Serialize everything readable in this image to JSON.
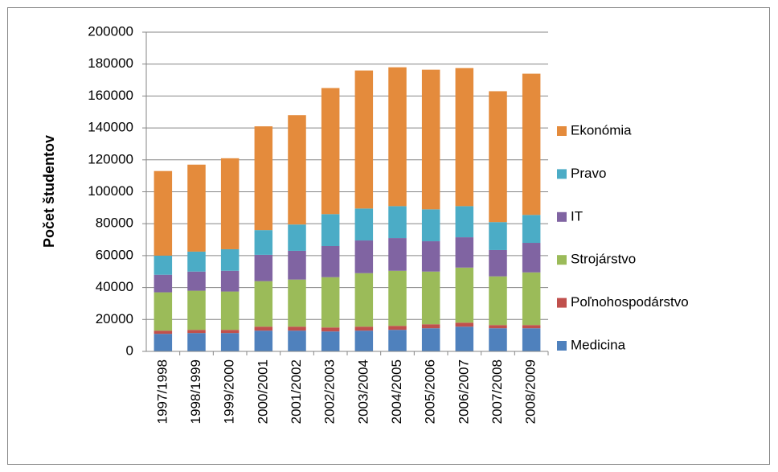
{
  "chart_data": {
    "type": "stacked_bar",
    "y_label": "Počet študentov",
    "categories": [
      "1997/1998",
      "1998/1999",
      "1999/2000",
      "2000/2001",
      "2001/2002",
      "2002/2003",
      "2003/2004",
      "2004/2005",
      "2005/2006",
      "2006/2007",
      "2007/2008",
      "2008/2009"
    ],
    "series": [
      {
        "name": "Medicina",
        "color": "#4f81bd",
        "values": [
          11000,
          11500,
          11500,
          13000,
          13000,
          12500,
          13000,
          13500,
          14500,
          15500,
          14500,
          14500
        ]
      },
      {
        "name": "Poľnohospodárstvo",
        "color": "#c0504d",
        "values": [
          2000,
          2000,
          2000,
          2500,
          2500,
          2500,
          2500,
          2500,
          2500,
          2500,
          2000,
          2000
        ]
      },
      {
        "name": "Strojárstvo",
        "color": "#9bbb59",
        "values": [
          24000,
          24500,
          24000,
          28500,
          29500,
          31500,
          33500,
          34500,
          33000,
          34500,
          30500,
          33000
        ]
      },
      {
        "name": "IT",
        "color": "#8064a2",
        "values": [
          11000,
          12000,
          13000,
          16500,
          18000,
          19500,
          20500,
          20500,
          19000,
          19000,
          16500,
          18500
        ]
      },
      {
        "name": "Pravo",
        "color": "#4bacc6",
        "values": [
          12000,
          12500,
          13500,
          15500,
          16500,
          20000,
          20000,
          20000,
          20000,
          19500,
          17500,
          17500
        ]
      },
      {
        "name": "Ekonómia",
        "color": "#e48b3c",
        "values": [
          53000,
          54500,
          57000,
          65000,
          68500,
          79000,
          86500,
          87000,
          87500,
          86500,
          82000,
          88500
        ]
      }
    ],
    "ylim": [
      0,
      200000
    ],
    "yticks": [
      0,
      20000,
      40000,
      60000,
      80000,
      100000,
      120000,
      140000,
      160000,
      180000,
      200000
    ],
    "grid": true,
    "legend": "right"
  }
}
